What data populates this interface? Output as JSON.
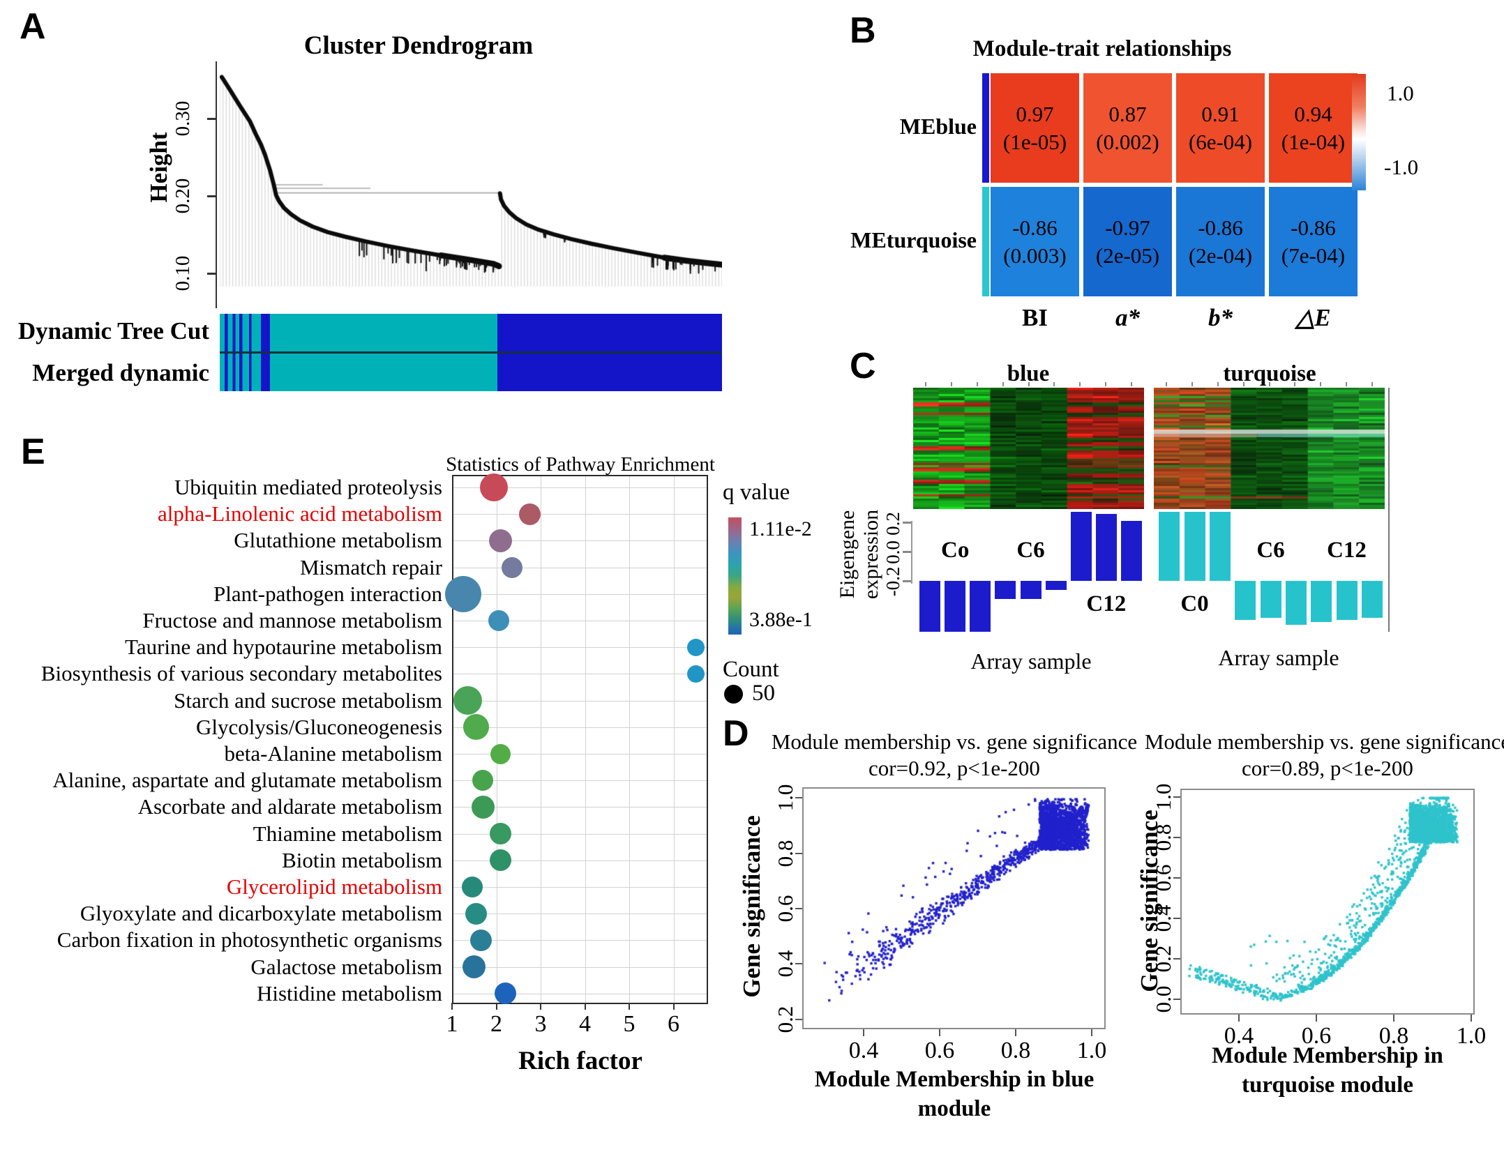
{
  "chart_data": [
    {
      "panel": "A",
      "type": "dendrogram",
      "title": "Cluster Dendrogram",
      "ylabel": "Height",
      "y_ticks": [
        "0.30",
        "0.20",
        "0.10"
      ],
      "height_range": [
        0.1,
        0.37
      ],
      "color_rows": [
        "Dynamic Tree Cut",
        "Merged dynamic"
      ],
      "cluster_colors": {
        "turquoise": "#00b2b8",
        "blue": "#1414c8"
      },
      "clusters": [
        {
          "name": "turquoise",
          "span": [
            0.0,
            0.553
          ]
        },
        {
          "name": "blue",
          "span": [
            0.553,
            1.0
          ]
        }
      ],
      "stripe_segments": [
        {
          "from": 0.0,
          "to": 1.0,
          "color": "T"
        },
        {
          "from": 1.0,
          "to": 1.6,
          "color": "B"
        },
        {
          "from": 1.6,
          "to": 2.6,
          "color": "T"
        },
        {
          "from": 2.6,
          "to": 3.1,
          "color": "B"
        },
        {
          "from": 3.1,
          "to": 3.9,
          "color": "T"
        },
        {
          "from": 3.9,
          "to": 4.5,
          "color": "B"
        },
        {
          "from": 4.5,
          "to": 5.8,
          "color": "T"
        },
        {
          "from": 5.8,
          "to": 6.3,
          "color": "B"
        },
        {
          "from": 6.3,
          "to": 8.2,
          "color": "T"
        },
        {
          "from": 8.2,
          "to": 10.0,
          "color": "B"
        },
        {
          "from": 10.0,
          "to": 55.3,
          "color": "T"
        },
        {
          "from": 55.3,
          "to": 100.0,
          "color": "B"
        }
      ]
    },
    {
      "panel": "B",
      "type": "heatmap",
      "title": "Module-trait relationships",
      "rows": [
        {
          "name": "MEblue",
          "strip": "#1a1acc"
        },
        {
          "name": "MEturquoise",
          "strip": "#2ac8cc"
        }
      ],
      "columns": [
        "BI",
        "a*",
        "b*",
        "△E"
      ],
      "cells": [
        [
          {
            "v": "0.97",
            "p": "(1e-05)",
            "bg": "#e93c1e"
          },
          {
            "v": "0.87",
            "p": "(0.002)",
            "bg": "#f05330"
          },
          {
            "v": "0.91",
            "p": "(6e-04)",
            "bg": "#ee4b28"
          },
          {
            "v": "0.94",
            "p": "(1e-04)",
            "bg": "#eb4220"
          }
        ],
        [
          {
            "v": "-0.86",
            "p": "(0.003)",
            "bg": "#1e82dc"
          },
          {
            "v": "-0.97",
            "p": "(2e-05)",
            "bg": "#1568ce"
          },
          {
            "v": "-0.86",
            "p": "(2e-04)",
            "bg": "#1b77d6"
          },
          {
            "v": "-0.86",
            "p": "(7e-04)",
            "bg": "#1c7ad8"
          }
        ]
      ],
      "legend_max": "1.0",
      "legend_min": "-1.0"
    },
    {
      "panel": "C",
      "type": "bar",
      "ylabel_line1": "Eigengene",
      "ylabel_line2": "expression",
      "y_ticks": [
        "0.2",
        "0.0",
        "-0.2"
      ],
      "xlabel": "Array sample",
      "modules": [
        {
          "title": "blue",
          "bar_color": "#1c1ccd",
          "bars": [
            -0.22,
            -0.22,
            -0.22,
            -0.08,
            -0.08,
            -0.04,
            0.3,
            0.29,
            0.26
          ],
          "group_labels": [
            {
              "text": "Co",
              "group": 0,
              "vpos": "upper"
            },
            {
              "text": "C6",
              "group": 1,
              "vpos": "upper"
            },
            {
              "text": "C12",
              "group": 2,
              "vpos": "lower"
            }
          ]
        },
        {
          "title": "turquoise",
          "bar_color": "#27c3cd",
          "bars": [
            0.3,
            0.3,
            0.3,
            -0.17,
            -0.16,
            -0.19,
            -0.18,
            -0.17,
            -0.16
          ],
          "group_labels": [
            {
              "text": "C0",
              "group": 0,
              "vpos": "lower"
            },
            {
              "text": "C6",
              "group": 1,
              "vpos": "upper"
            },
            {
              "text": "C12",
              "group": 2,
              "vpos": "upper"
            }
          ]
        }
      ]
    },
    {
      "panel": "D",
      "type": "scatter",
      "title": "Module membership vs. gene significance",
      "subtitle": "cor=0.92, p<1e-200",
      "xlabel_line1": "Module Membership in blue",
      "xlabel_line2": "module",
      "ylabel": "Gene significance",
      "x_ticks": [
        "0.4",
        "0.6",
        "0.8",
        "1.0"
      ],
      "y_ticks": [
        "1.0",
        "0.8",
        "0.6",
        "0.4",
        "0.2"
      ],
      "color": "#2121cc",
      "xlim": [
        0.25,
        1.04
      ],
      "ylim": [
        0.14,
        1.04
      ]
    },
    {
      "panel": "D2",
      "type": "scatter",
      "title": "Module membership vs. gene significance",
      "subtitle": "cor=0.89, p<1e-200",
      "xlabel_line1": "Module Membership in",
      "xlabel_line2": "turquoise module",
      "ylabel": "Gene significance",
      "x_ticks": [
        "0.4",
        "0.6",
        "0.8",
        "1.0"
      ],
      "y_ticks": [
        "1.0",
        "0.8",
        "0.6",
        "0.4",
        "0.2",
        "0.0"
      ],
      "color": "#2fc3cc",
      "xlim": [
        0.26,
        1.04
      ],
      "ylim": [
        -0.05,
        1.06
      ]
    },
    {
      "panel": "E",
      "type": "bubble",
      "title": "Statistics of Pathway Enrichment",
      "xlabel": "Rich factor",
      "x_ticks": [
        "1",
        "2",
        "3",
        "4",
        "5",
        "6"
      ],
      "legend": {
        "q_title": "q value",
        "q_max": "1.11e-2",
        "q_min": "3.88e-1",
        "count_title": "Count",
        "count_label": "50"
      },
      "pathways": [
        {
          "name": "Ubiquitin mediated proteolysis",
          "rich_factor": 1.95,
          "size": 40,
          "color": "#c64a57",
          "red": false
        },
        {
          "name": "alpha-Linolenic acid metabolism",
          "rich_factor": 2.75,
          "size": 31,
          "color": "#ad5a67",
          "red": true
        },
        {
          "name": "Glutathione metabolism",
          "rich_factor": 2.1,
          "size": 33,
          "color": "#8f6d8e",
          "red": false
        },
        {
          "name": "Mismatch repair",
          "rich_factor": 2.35,
          "size": 30,
          "color": "#747b9e",
          "red": false
        },
        {
          "name": "Plant-pathogen interaction",
          "rich_factor": 1.25,
          "size": 52,
          "color": "#4886ae",
          "red": false
        },
        {
          "name": "Fructose and mannose metabolism",
          "rich_factor": 2.05,
          "size": 30,
          "color": "#3d8fb8",
          "red": false
        },
        {
          "name": "Taurine and hypotaurine metabolism",
          "rich_factor": 6.5,
          "size": 25,
          "color": "#2196c6",
          "red": false
        },
        {
          "name": "Biosynthesis of various secondary metabolites",
          "rich_factor": 6.5,
          "size": 25,
          "color": "#2196c6",
          "red": false
        },
        {
          "name": "Starch and sucrose metabolism",
          "rich_factor": 1.35,
          "size": 41,
          "color": "#4aa458",
          "red": false
        },
        {
          "name": "Glycolysis/Gluconeogenesis",
          "rich_factor": 1.55,
          "size": 37,
          "color": "#4fab4c",
          "red": false
        },
        {
          "name": "beta-Alanine metabolism",
          "rich_factor": 2.1,
          "size": 29,
          "color": "#52ad47",
          "red": false
        },
        {
          "name": "Alanine, aspartate and glutamate metabolism",
          "rich_factor": 1.7,
          "size": 30,
          "color": "#47a44c",
          "red": false
        },
        {
          "name": "Ascorbate and aldarate metabolism",
          "rich_factor": 1.7,
          "size": 33,
          "color": "#3c9a56",
          "red": false
        },
        {
          "name": "Thiamine metabolism",
          "rich_factor": 2.1,
          "size": 31,
          "color": "#389961",
          "red": false
        },
        {
          "name": "Biotin metabolism",
          "rich_factor": 2.1,
          "size": 31,
          "color": "#2f9167",
          "red": false
        },
        {
          "name": "Glycerolipid metabolism",
          "rich_factor": 1.45,
          "size": 30,
          "color": "#27897a",
          "red": true
        },
        {
          "name": "Glyoxylate and dicarboxylate metabolism",
          "rich_factor": 1.55,
          "size": 31,
          "color": "#278c84",
          "red": false
        },
        {
          "name": "Carbon fixation in photosynthetic organisms",
          "rich_factor": 1.65,
          "size": 31,
          "color": "#2a7f97",
          "red": false
        },
        {
          "name": "Galactose metabolism",
          "rich_factor": 1.5,
          "size": 33,
          "color": "#28739b",
          "red": false
        },
        {
          "name": "Histidine metabolism",
          "rich_factor": 2.2,
          "size": 31,
          "color": "#1c64bb",
          "red": false
        }
      ]
    }
  ]
}
